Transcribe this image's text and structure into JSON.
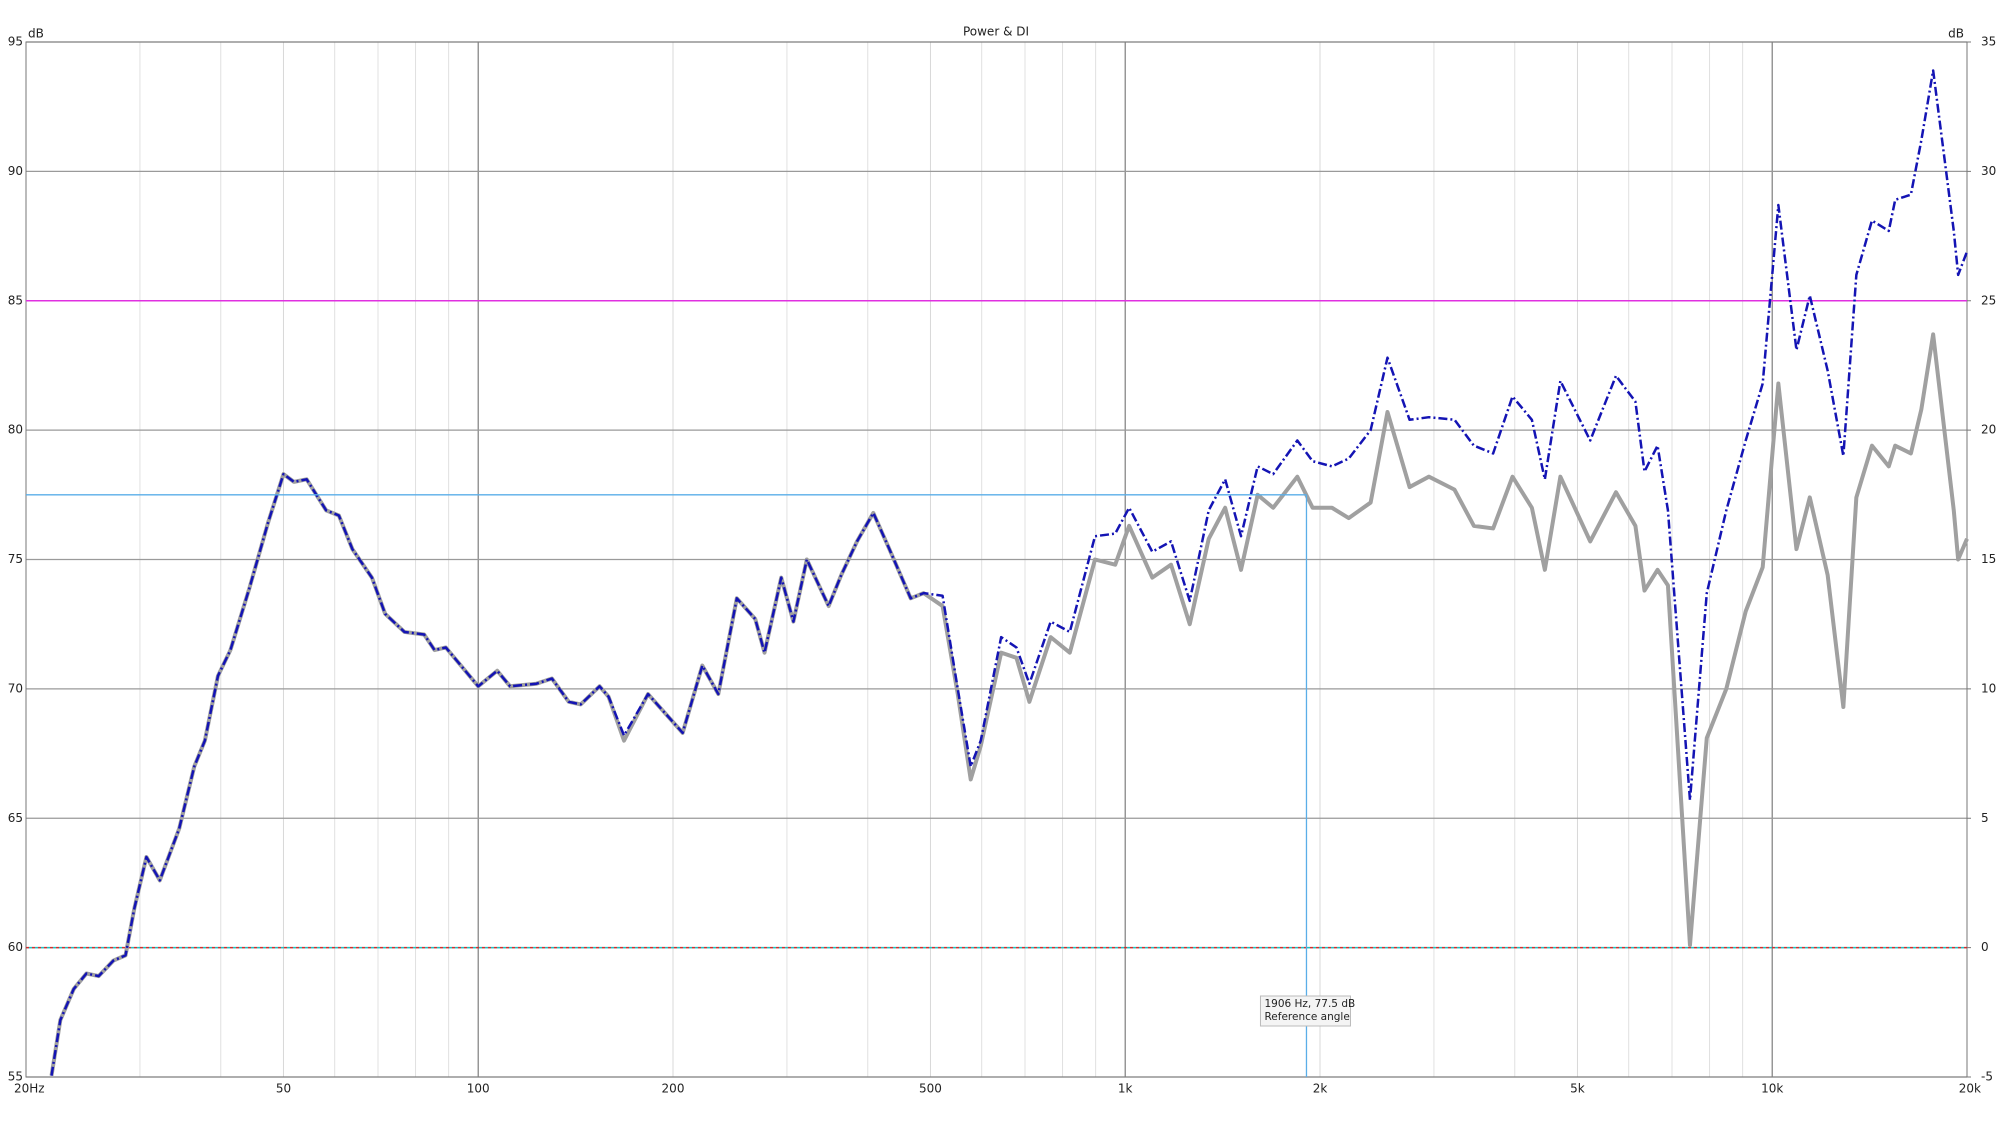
{
  "chart_data": {
    "type": "line",
    "title": "Power & DI",
    "y_unit": "dB",
    "y2_unit": "dB",
    "xscale": "log",
    "xlim": [
      20,
      20000
    ],
    "xticks": [
      {
        "value": 20,
        "label": "20Hz"
      },
      50,
      100,
      200,
      500,
      {
        "value": 1000,
        "label": "1k"
      },
      {
        "value": 2000,
        "label": "2k"
      },
      {
        "value": 5000,
        "label": "5k"
      },
      {
        "value": 10000,
        "label": "10k"
      },
      {
        "value": 20000,
        "label": "20k"
      }
    ],
    "xmajor": [
      100,
      1000,
      10000
    ],
    "xminor": [
      30,
      40,
      60,
      70,
      80,
      90,
      300,
      400,
      600,
      700,
      800,
      900,
      3000,
      4000,
      6000,
      7000,
      8000,
      9000
    ],
    "ylim": [
      55,
      95
    ],
    "yticks": [
      55,
      60,
      65,
      70,
      75,
      80,
      85,
      90,
      95
    ],
    "y2lim": [
      -5,
      35
    ],
    "y2ticks": [
      -5,
      0,
      5,
      10,
      15,
      20,
      25,
      30,
      35
    ],
    "grid": true,
    "hlines": [
      {
        "value": 85,
        "colors": [
          "#e030e0"
        ]
      },
      {
        "value": 60,
        "colors": [
          "#d03030",
          "#20c0c0"
        ]
      }
    ],
    "x": [
      21.9,
      22.6,
      23.7,
      24.8,
      25.9,
      27.3,
      28.5,
      29.4,
      30.7,
      32.2,
      34.5,
      36.4,
      37.8,
      39.6,
      41.4,
      44.3,
      47.3,
      50,
      51.9,
      54.3,
      58.2,
      60.9,
      63.9,
      68.5,
      71.8,
      76.9,
      82.5,
      85.6,
      89.1,
      100,
      107,
      112,
      123,
      130,
      138,
      144,
      154,
      159,
      168,
      183,
      207,
      222,
      235,
      251,
      268,
      277,
      294,
      307,
      322,
      348,
      364,
      385,
      408,
      432,
      466,
      488,
      522,
      551,
      577,
      598,
      643,
      679,
      711,
      767,
      821,
      898,
      965,
      1014,
      1101,
      1177,
      1258,
      1346,
      1427,
      1510,
      1602,
      1693,
      1845,
      1948,
      2087,
      2215,
      2395,
      2543,
      2751,
      2947,
      3228,
      3458,
      3704,
      3968,
      4251,
      4452,
      4705,
      5232,
      5735,
      6145,
      6347,
      6649,
      6899,
      7462,
      7922,
      8492,
      9100,
      9666,
      10220,
      10900,
      11430,
      12180,
      12880,
      13490,
      14260,
      15140,
      15490,
      16380,
      17000,
      17730,
      19080,
      19380,
      20000
    ],
    "series": [
      {
        "color": "#a0a0a0",
        "style": "solid",
        "width": 4,
        "values": [
          55.05,
          57.2,
          58.4,
          59.0,
          58.9,
          59.5,
          59.7,
          61.5,
          63.5,
          62.6,
          64.6,
          67.0,
          68.0,
          70.5,
          71.5,
          73.9,
          76.4,
          78.3,
          78.0,
          78.1,
          76.9,
          76.7,
          75.4,
          74.3,
          72.9,
          72.2,
          72.1,
          71.5,
          71.6,
          70.1,
          70.7,
          70.1,
          70.2,
          70.4,
          69.5,
          69.4,
          70.1,
          69.7,
          68.0,
          69.8,
          68.3,
          70.9,
          69.8,
          73.5,
          72.7,
          71.4,
          74.3,
          72.6,
          75.0,
          73.2,
          74.4,
          75.7,
          76.8,
          75.4,
          73.5,
          73.7,
          73.2,
          69.8,
          66.5,
          67.8,
          71.4,
          71.2,
          69.5,
          72.0,
          71.4,
          75.0,
          74.8,
          76.3,
          74.3,
          74.8,
          72.5,
          75.8,
          77.0,
          74.6,
          77.5,
          77.0,
          78.2,
          77.0,
          77.0,
          76.6,
          77.2,
          80.7,
          77.8,
          78.2,
          77.7,
          76.3,
          76.2,
          78.2,
          77.0,
          74.6,
          78.2,
          75.7,
          77.6,
          76.3,
          73.8,
          74.6,
          74.0,
          60.1,
          68.1,
          70.0,
          73.0,
          74.7,
          81.8,
          75.4,
          77.4,
          74.4,
          69.3,
          77.4,
          79.4,
          78.6,
          79.4,
          79.1,
          80.8,
          83.7,
          76.9,
          75.0,
          75.8
        ]
      },
      {
        "color": "#1414b4",
        "style": "dashdot",
        "width": 2.5,
        "values": [
          55.05,
          57.2,
          58.4,
          59.0,
          58.9,
          59.5,
          59.7,
          61.5,
          63.5,
          62.6,
          64.6,
          67.0,
          68.0,
          70.5,
          71.5,
          73.9,
          76.4,
          78.3,
          78.0,
          78.1,
          76.9,
          76.7,
          75.4,
          74.3,
          72.9,
          72.2,
          72.1,
          71.5,
          71.6,
          70.1,
          70.7,
          70.1,
          70.2,
          70.4,
          69.5,
          69.4,
          70.1,
          69.7,
          68.2,
          69.8,
          68.3,
          70.9,
          69.8,
          73.5,
          72.7,
          71.4,
          74.3,
          72.6,
          75.0,
          73.2,
          74.4,
          75.7,
          76.8,
          75.4,
          73.5,
          73.7,
          73.6,
          70.0,
          67.0,
          68.0,
          72.0,
          71.6,
          70.2,
          72.6,
          72.2,
          75.9,
          76.0,
          77.0,
          75.3,
          75.7,
          73.4,
          76.9,
          78.1,
          75.9,
          78.6,
          78.3,
          79.6,
          78.8,
          78.6,
          78.9,
          80.0,
          82.8,
          80.4,
          80.5,
          80.4,
          79.4,
          79.1,
          81.3,
          80.4,
          78.1,
          81.9,
          79.6,
          82.1,
          81.1,
          78.4,
          79.4,
          76.9,
          65.7,
          73.7,
          76.9,
          79.6,
          81.8,
          88.7,
          83.1,
          85.2,
          82.3,
          79.0,
          86.0,
          88.1,
          87.7,
          88.9,
          89.1,
          91.2,
          93.9,
          87.7,
          86.0,
          86.9
        ]
      }
    ],
    "cursor": {
      "x": 1906,
      "y": 77.5,
      "color": "#5aaee8",
      "lines": [
        "1906 Hz, 77.5 dB",
        "Reference angle"
      ]
    }
  }
}
